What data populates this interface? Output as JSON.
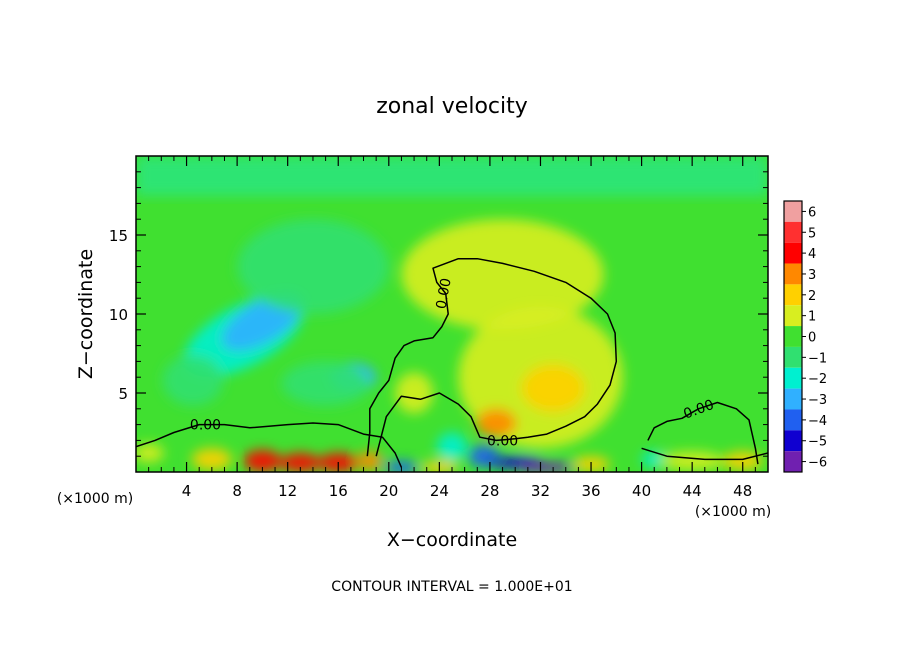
{
  "chart_data": {
    "type": "heatmap",
    "title": "zonal velocity",
    "xlabel": "X−coordinate",
    "ylabel": "Z−coordinate",
    "x_unit_left": "(×1000 m)",
    "x_unit_right": "(×1000 m)",
    "footer": "CONTOUR INTERVAL = 1.000E+01",
    "xlim": [
      0,
      50
    ],
    "ylim": [
      0,
      20
    ],
    "x_ticks": [
      4,
      8,
      12,
      16,
      20,
      24,
      28,
      32,
      36,
      40,
      44,
      48
    ],
    "y_ticks": [
      5,
      10,
      15
    ],
    "colorbar": {
      "levels": [
        "6",
        "5",
        "4",
        "3",
        "2",
        "1",
        "0",
        "−1",
        "−2",
        "−3",
        "−4",
        "−5",
        "−6"
      ],
      "colors": [
        "#f0a0a0",
        "#ff3030",
        "#ff0000",
        "#ff8800",
        "#ffd000",
        "#d8ee20",
        "#40e030",
        "#30e070",
        "#00f0d0",
        "#30b0ff",
        "#2060f0",
        "#1000d0",
        "#7020b0"
      ]
    },
    "contour_label": "0.00",
    "blobs": [
      {
        "x": 8.5,
        "z": 8.6,
        "rx": 5.2,
        "rz": 1.9,
        "rot": -28,
        "v": -1.7
      },
      {
        "x": 10,
        "z": 9.5,
        "rx": 3.6,
        "rz": 1.3,
        "rot": -30,
        "v": -2.6
      },
      {
        "x": 17.2,
        "z": 6.0,
        "rx": 1.8,
        "rz": 0.9,
        "rot": 0,
        "v": -2.8
      },
      {
        "x": 15,
        "z": 5.6,
        "rx": 3.5,
        "rz": 1.4,
        "rot": 0,
        "v": -1.3
      },
      {
        "x": 4.5,
        "z": 5.8,
        "rx": 2.4,
        "rz": 1.6,
        "rot": 0,
        "v": -0.8
      },
      {
        "x": 14,
        "z": 13.0,
        "rx": 6,
        "rz": 3,
        "rot": 0,
        "v": -0.5
      },
      {
        "x": 32,
        "z": 6.0,
        "rx": 6.5,
        "rz": 4.5,
        "rot": 0,
        "v": 1.0
      },
      {
        "x": 33,
        "z": 5.3,
        "rx": 2.5,
        "rz": 1.5,
        "rot": 0,
        "v": 2.0
      },
      {
        "x": 28.5,
        "z": 3.1,
        "rx": 1.6,
        "rz": 0.9,
        "rot": 0,
        "v": 2.6
      },
      {
        "x": 29,
        "z": 12.5,
        "rx": 8,
        "rz": 3.5,
        "rot": 0,
        "v": 0.6
      },
      {
        "x": 22,
        "z": 5.0,
        "rx": 1.5,
        "rz": 1.3,
        "rot": 0,
        "v": 1.2
      },
      {
        "x": 25,
        "z": 1.6,
        "rx": 1.2,
        "rz": 0.9,
        "rot": 0,
        "v": -2.0
      },
      {
        "x": 27.5,
        "z": 1.0,
        "rx": 1.2,
        "rz": 0.7,
        "rot": 0,
        "v": -3.5
      },
      {
        "x": 6,
        "z": 0.8,
        "rx": 1.6,
        "rz": 0.7,
        "rot": 0,
        "v": 2.5
      },
      {
        "x": 10,
        "z": 0.7,
        "rx": 1.5,
        "rz": 0.7,
        "rot": 0,
        "v": 3.8
      },
      {
        "x": 13,
        "z": 0.6,
        "rx": 1.6,
        "rz": 0.6,
        "rot": 0,
        "v": 4.5
      },
      {
        "x": 16,
        "z": 0.6,
        "rx": 1.6,
        "rz": 0.6,
        "rot": 0,
        "v": 4.2
      },
      {
        "x": 18.5,
        "z": 0.7,
        "rx": 1.0,
        "rz": 0.6,
        "rot": 0,
        "v": 3.0
      },
      {
        "x": 21,
        "z": 0.3,
        "rx": 1.3,
        "rz": 0.4,
        "rot": 0,
        "v": -3.5
      },
      {
        "x": 24,
        "z": 0.3,
        "rx": 1.5,
        "rz": 0.4,
        "rot": 0,
        "v": 2.5
      },
      {
        "x": 30,
        "z": 0.6,
        "rx": 2.2,
        "rz": 0.4,
        "rot": 0,
        "v": -4.5
      },
      {
        "x": 32.5,
        "z": 0.3,
        "rx": 2.2,
        "rz": 0.35,
        "rot": 0,
        "v": -5.5
      },
      {
        "x": 36,
        "z": 0.5,
        "rx": 1.5,
        "rz": 0.5,
        "rot": 0,
        "v": 2.5
      },
      {
        "x": 41,
        "z": 0.8,
        "rx": 1.0,
        "rz": 0.5,
        "rot": 0,
        "v": -2.0
      },
      {
        "x": 44,
        "z": 0.7,
        "rx": 2.5,
        "rz": 0.6,
        "rot": 0,
        "v": 1.5
      },
      {
        "x": 1,
        "z": 1.2,
        "rx": 1.2,
        "rz": 0.6,
        "rot": 0,
        "v": 1.0
      },
      {
        "x": 48,
        "z": 0.7,
        "rx": 1.6,
        "rz": 0.6,
        "rot": 0,
        "v": 2.0
      }
    ],
    "contours": [
      {
        "label_at": [
          5.5,
          3.0
        ],
        "points": [
          [
            0,
            1.6
          ],
          [
            1.5,
            2.0
          ],
          [
            3,
            2.5
          ],
          [
            5,
            3.0
          ],
          [
            7,
            3.0
          ],
          [
            9,
            2.8
          ],
          [
            12,
            3.0
          ],
          [
            14,
            3.1
          ],
          [
            16,
            3.0
          ],
          [
            18,
            2.4
          ],
          [
            19.5,
            2.2
          ],
          [
            20.5,
            1.2
          ],
          [
            21,
            0.3
          ]
        ]
      },
      {
        "label_at": [
          24.3,
          11.3
        ],
        "points": [
          [
            19,
            1.0
          ],
          [
            19.8,
            3.5
          ],
          [
            21,
            4.8
          ],
          [
            22.5,
            4.6
          ],
          [
            24,
            5.0
          ],
          [
            25.5,
            4.3
          ],
          [
            26.5,
            3.5
          ],
          [
            27.2,
            2.2
          ],
          [
            28.5,
            2.0
          ],
          [
            30,
            2.1
          ],
          [
            31,
            2.2
          ],
          [
            32.5,
            2.4
          ],
          [
            34,
            2.9
          ],
          [
            35.5,
            3.5
          ],
          [
            36.5,
            4.3
          ],
          [
            37.5,
            5.5
          ],
          [
            38.0,
            7.0
          ],
          [
            37.9,
            8.8
          ],
          [
            37.3,
            10.0
          ],
          [
            36,
            11.0
          ],
          [
            34,
            12.0
          ],
          [
            31.5,
            12.7
          ],
          [
            29,
            13.2
          ],
          [
            27,
            13.5
          ],
          [
            25.5,
            13.5
          ],
          [
            23.5,
            12.9
          ],
          [
            23.8,
            12.0
          ],
          [
            24.5,
            11.3
          ],
          [
            24.7,
            10.0
          ],
          [
            24.2,
            9.2
          ],
          [
            23.5,
            8.5
          ],
          [
            22,
            8.3
          ],
          [
            21.2,
            8.0
          ],
          [
            20.5,
            7.2
          ],
          [
            20.0,
            5.8
          ],
          [
            19.2,
            5.0
          ],
          [
            18.5,
            4.0
          ],
          [
            18.5,
            2.5
          ],
          [
            18.3,
            1.0
          ]
        ]
      },
      {
        "label_at": [
          44.5,
          4.0
        ],
        "points": [
          [
            40.5,
            2.0
          ],
          [
            41,
            2.8
          ],
          [
            42,
            3.2
          ],
          [
            43.2,
            3.4
          ],
          [
            44.5,
            4.0
          ],
          [
            46,
            4.4
          ],
          [
            47.5,
            4.0
          ],
          [
            48.5,
            3.3
          ],
          [
            49,
            1.5
          ],
          [
            49.2,
            0.5
          ]
        ]
      },
      {
        "label_at": [
          29,
          2.0
        ],
        "points": [
          [
            40,
            1.5
          ],
          [
            42,
            1.0
          ],
          [
            45,
            0.8
          ],
          [
            48,
            0.8
          ],
          [
            50,
            1.2
          ]
        ]
      }
    ]
  }
}
